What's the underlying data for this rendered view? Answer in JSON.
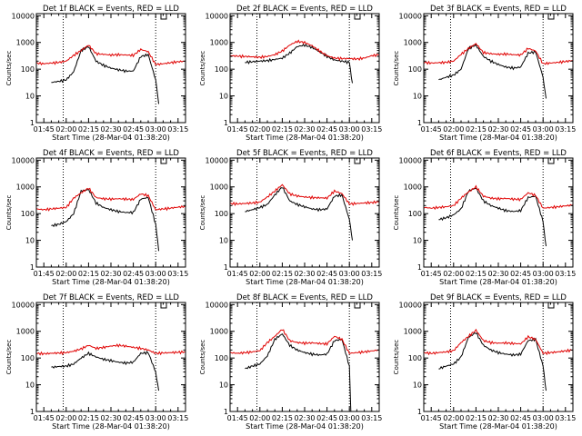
{
  "page": {
    "background": "#ffffff"
  },
  "colors": {
    "events": "#000000",
    "lld": "#e00000",
    "axis": "#000000",
    "marker_line": "#000000"
  },
  "common": {
    "ylabel": "Counts/sec",
    "xlabel": "Start Time (28-Mar-04 01:38:20)",
    "x_ticks": [
      "01:45",
      "02:00",
      "02:15",
      "02:30",
      "02:45",
      "03:00",
      "03:15"
    ],
    "y_ticks": [
      "1",
      "10",
      "100",
      "1000",
      "10000"
    ],
    "y_scale": "log",
    "ylim": [
      1,
      12000
    ],
    "xlim_minutes": [
      100,
      200
    ],
    "dotted_marker_times": [
      "01:58",
      "03:00"
    ]
  },
  "chart_data": [
    {
      "type": "line",
      "title": "Det 1f BLACK = Events, RED = LLD",
      "series": [
        {
          "name": "Events",
          "color": "#000000",
          "x": [
            "01:50",
            "01:55",
            "02:00",
            "02:05",
            "02:10",
            "02:15",
            "02:20",
            "02:25",
            "02:30",
            "02:35",
            "02:40",
            "02:45",
            "02:50",
            "02:55",
            "03:00",
            "03:02"
          ],
          "y": [
            32,
            35,
            40,
            80,
            500,
            700,
            200,
            140,
            110,
            95,
            85,
            85,
            300,
            350,
            40,
            5
          ]
        },
        {
          "name": "LLD",
          "color": "#e00000",
          "x": [
            "01:40",
            "01:45",
            "01:50",
            "01:55",
            "02:00",
            "02:05",
            "02:10",
            "02:15",
            "02:20",
            "02:25",
            "02:30",
            "02:35",
            "02:40",
            "02:45",
            "02:50",
            "02:55",
            "03:00",
            "03:05",
            "03:10",
            "03:15",
            "03:20"
          ],
          "y": [
            170,
            160,
            170,
            180,
            200,
            330,
            500,
            800,
            380,
            360,
            340,
            350,
            340,
            330,
            550,
            450,
            150,
            160,
            175,
            190,
            200
          ]
        }
      ]
    },
    {
      "type": "line",
      "title": "Det 2f BLACK = Events, RED = LLD",
      "series": [
        {
          "name": "Events",
          "color": "#000000",
          "x": [
            "01:50",
            "01:55",
            "02:00",
            "02:05",
            "02:10",
            "02:15",
            "02:20",
            "02:25",
            "02:30",
            "02:35",
            "02:40",
            "02:45",
            "02:50",
            "02:55",
            "03:00",
            "03:02"
          ],
          "y": [
            180,
            190,
            200,
            210,
            230,
            260,
            400,
            700,
            800,
            650,
            450,
            300,
            220,
            200,
            180,
            30
          ]
        },
        {
          "name": "LLD",
          "color": "#e00000",
          "x": [
            "01:40",
            "01:45",
            "01:50",
            "01:55",
            "02:00",
            "02:05",
            "02:10",
            "02:15",
            "02:20",
            "02:25",
            "02:30",
            "02:35",
            "02:40",
            "02:45",
            "02:50",
            "02:55",
            "03:00",
            "03:05",
            "03:10",
            "03:15",
            "03:20"
          ],
          "y": [
            320,
            310,
            300,
            290,
            280,
            300,
            350,
            480,
            800,
            1100,
            1000,
            750,
            480,
            320,
            260,
            250,
            250,
            240,
            260,
            320,
            350
          ]
        }
      ]
    },
    {
      "type": "line",
      "title": "Det 3f BLACK = Events, RED = LLD",
      "series": [
        {
          "name": "Events",
          "color": "#000000",
          "x": [
            "01:50",
            "01:55",
            "02:00",
            "02:05",
            "02:10",
            "02:15",
            "02:20",
            "02:25",
            "02:30",
            "02:35",
            "02:40",
            "02:45",
            "02:50",
            "02:55",
            "03:00",
            "03:02"
          ],
          "y": [
            40,
            50,
            60,
            100,
            600,
            800,
            300,
            200,
            150,
            120,
            110,
            120,
            400,
            450,
            50,
            8
          ]
        },
        {
          "name": "LLD",
          "color": "#e00000",
          "x": [
            "01:40",
            "01:45",
            "01:50",
            "01:55",
            "02:00",
            "02:05",
            "02:10",
            "02:15",
            "02:20",
            "02:25",
            "02:30",
            "02:35",
            "02:40",
            "02:45",
            "02:50",
            "02:55",
            "03:00",
            "03:05",
            "03:10",
            "03:15",
            "03:20"
          ],
          "y": [
            180,
            170,
            175,
            180,
            200,
            360,
            600,
            900,
            420,
            380,
            360,
            370,
            350,
            340,
            600,
            480,
            160,
            170,
            180,
            195,
            210
          ]
        }
      ]
    },
    {
      "type": "line",
      "title": "Det 4f BLACK = Events, RED = LLD",
      "series": [
        {
          "name": "Events",
          "color": "#000000",
          "x": [
            "01:50",
            "01:55",
            "02:00",
            "02:05",
            "02:10",
            "02:15",
            "02:20",
            "02:25",
            "02:30",
            "02:35",
            "02:40",
            "02:45",
            "02:50",
            "02:55",
            "03:00",
            "03:02"
          ],
          "y": [
            35,
            40,
            50,
            100,
            700,
            800,
            250,
            170,
            140,
            120,
            110,
            110,
            350,
            400,
            40,
            4
          ]
        },
        {
          "name": "LLD",
          "color": "#e00000",
          "x": [
            "01:40",
            "01:45",
            "01:50",
            "01:55",
            "02:00",
            "02:05",
            "02:10",
            "02:15",
            "02:20",
            "02:25",
            "02:30",
            "02:35",
            "02:40",
            "02:45",
            "02:50",
            "02:55",
            "03:00",
            "03:05",
            "03:10",
            "03:15",
            "03:20"
          ],
          "y": [
            150,
            140,
            150,
            160,
            170,
            380,
            600,
            900,
            400,
            360,
            350,
            360,
            350,
            340,
            550,
            470,
            140,
            150,
            160,
            175,
            185
          ]
        }
      ]
    },
    {
      "type": "line",
      "title": "Det 5f BLACK = Events, RED = LLD",
      "series": [
        {
          "name": "Events",
          "color": "#000000",
          "x": [
            "01:50",
            "01:55",
            "02:00",
            "02:05",
            "02:10",
            "02:15",
            "02:20",
            "02:25",
            "02:30",
            "02:35",
            "02:40",
            "02:45",
            "02:50",
            "02:55",
            "03:00",
            "03:02"
          ],
          "y": [
            120,
            140,
            170,
            220,
            500,
            1000,
            300,
            220,
            180,
            150,
            140,
            150,
            450,
            500,
            60,
            10
          ]
        },
        {
          "name": "LLD",
          "color": "#e00000",
          "x": [
            "01:40",
            "01:45",
            "01:50",
            "01:55",
            "02:00",
            "02:05",
            "02:10",
            "02:15",
            "02:20",
            "02:25",
            "02:30",
            "02:35",
            "02:40",
            "02:45",
            "02:50",
            "02:55",
            "03:00",
            "03:05",
            "03:10",
            "03:15",
            "03:20"
          ],
          "y": [
            240,
            230,
            240,
            250,
            270,
            420,
            700,
            1200,
            550,
            460,
            420,
            400,
            390,
            380,
            700,
            560,
            230,
            240,
            250,
            260,
            280
          ]
        }
      ]
    },
    {
      "type": "line",
      "title": "Det 6f BLACK = Events, RED = LLD",
      "series": [
        {
          "name": "Events",
          "color": "#000000",
          "x": [
            "01:50",
            "01:55",
            "02:00",
            "02:05",
            "02:10",
            "02:15",
            "02:20",
            "02:25",
            "02:30",
            "02:35",
            "02:40",
            "02:45",
            "02:50",
            "02:55",
            "03:00",
            "03:02"
          ],
          "y": [
            60,
            70,
            90,
            150,
            700,
            900,
            300,
            200,
            160,
            130,
            120,
            130,
            400,
            450,
            50,
            6
          ]
        },
        {
          "name": "LLD",
          "color": "#e00000",
          "x": [
            "01:40",
            "01:45",
            "01:50",
            "01:55",
            "02:00",
            "02:05",
            "02:10",
            "02:15",
            "02:20",
            "02:25",
            "02:30",
            "02:35",
            "02:40",
            "02:45",
            "02:50",
            "02:55",
            "03:00",
            "03:05",
            "03:10",
            "03:15",
            "03:20"
          ],
          "y": [
            170,
            160,
            170,
            180,
            200,
            380,
            650,
            1000,
            450,
            380,
            360,
            370,
            350,
            340,
            600,
            480,
            160,
            170,
            180,
            195,
            210
          ]
        }
      ]
    },
    {
      "type": "line",
      "title": "Det 7f BLACK = Events, RED = LLD",
      "series": [
        {
          "name": "Events",
          "color": "#000000",
          "x": [
            "01:50",
            "01:55",
            "02:00",
            "02:05",
            "02:10",
            "02:15",
            "02:20",
            "02:25",
            "02:30",
            "02:35",
            "02:40",
            "02:45",
            "02:50",
            "02:55",
            "03:00",
            "03:02"
          ],
          "y": [
            45,
            48,
            50,
            60,
            100,
            150,
            110,
            90,
            80,
            70,
            65,
            70,
            150,
            160,
            30,
            6
          ]
        },
        {
          "name": "LLD",
          "color": "#e00000",
          "x": [
            "01:40",
            "01:45",
            "01:50",
            "01:55",
            "02:00",
            "02:05",
            "02:10",
            "02:15",
            "02:20",
            "02:25",
            "02:30",
            "02:35",
            "02:40",
            "02:45",
            "02:50",
            "02:55",
            "03:00",
            "03:05",
            "03:10",
            "03:15",
            "03:20"
          ],
          "y": [
            150,
            145,
            150,
            155,
            160,
            180,
            220,
            300,
            230,
            250,
            280,
            300,
            280,
            250,
            230,
            200,
            150,
            155,
            160,
            165,
            170
          ]
        }
      ]
    },
    {
      "type": "line",
      "title": "Det 8f BLACK = Events, RED = LLD",
      "series": [
        {
          "name": "Events",
          "color": "#000000",
          "x": [
            "01:50",
            "01:55",
            "02:00",
            "02:05",
            "02:10",
            "02:15",
            "02:20",
            "02:25",
            "02:30",
            "02:35",
            "02:40",
            "02:45",
            "02:50",
            "02:55",
            "03:00",
            "03:01"
          ],
          "y": [
            40,
            50,
            60,
            120,
            500,
            800,
            300,
            200,
            160,
            140,
            130,
            140,
            450,
            500,
            50,
            1
          ]
        },
        {
          "name": "LLD",
          "color": "#e00000",
          "x": [
            "01:40",
            "01:45",
            "01:50",
            "01:55",
            "02:00",
            "02:05",
            "02:10",
            "02:15",
            "02:20",
            "02:25",
            "02:30",
            "02:35",
            "02:40",
            "02:45",
            "02:50",
            "02:55",
            "03:00",
            "03:05",
            "03:10",
            "03:15",
            "03:20"
          ],
          "y": [
            160,
            150,
            160,
            170,
            190,
            380,
            650,
            1200,
            450,
            380,
            360,
            370,
            350,
            340,
            650,
            500,
            150,
            160,
            170,
            185,
            200
          ]
        }
      ]
    },
    {
      "type": "line",
      "title": "Det 9f BLACK = Events, RED = LLD",
      "series": [
        {
          "name": "Events",
          "color": "#000000",
          "x": [
            "01:50",
            "01:55",
            "02:00",
            "02:05",
            "02:10",
            "02:15",
            "02:20",
            "02:25",
            "02:30",
            "02:35",
            "02:40",
            "02:45",
            "02:50",
            "02:55",
            "03:00",
            "03:02"
          ],
          "y": [
            40,
            50,
            60,
            110,
            600,
            900,
            300,
            200,
            160,
            140,
            130,
            140,
            450,
            500,
            50,
            6
          ]
        },
        {
          "name": "LLD",
          "color": "#e00000",
          "x": [
            "01:40",
            "01:45",
            "01:50",
            "01:55",
            "02:00",
            "02:05",
            "02:10",
            "02:15",
            "02:20",
            "02:25",
            "02:30",
            "02:35",
            "02:40",
            "02:45",
            "02:50",
            "02:55",
            "03:00",
            "03:05",
            "03:10",
            "03:15",
            "03:20"
          ],
          "y": [
            160,
            150,
            160,
            170,
            190,
            380,
            650,
            1100,
            450,
            380,
            360,
            370,
            350,
            340,
            620,
            500,
            150,
            160,
            170,
            185,
            200
          ]
        }
      ]
    }
  ]
}
